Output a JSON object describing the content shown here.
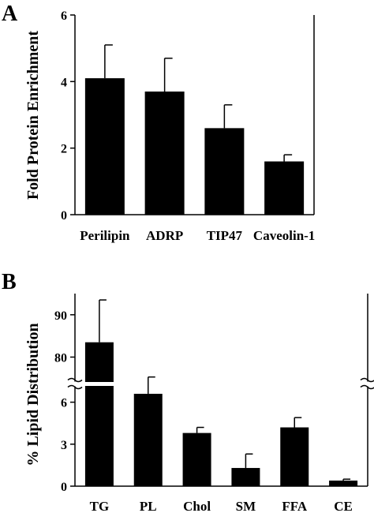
{
  "chart_data": [
    {
      "panel": "A",
      "type": "bar",
      "title": "",
      "xlabel": "",
      "ylabel": "Fold Protein Enrichment",
      "ylim": [
        0,
        6
      ],
      "yticks": [
        0,
        2,
        4,
        6
      ],
      "categories": [
        "Perilipin",
        "ADRP",
        "TIP47",
        "Caveolin-1"
      ],
      "values": [
        4.1,
        3.7,
        2.6,
        1.6
      ],
      "errors": [
        1.0,
        1.0,
        0.7,
        0.2
      ],
      "bar_color": "#000000",
      "grid": false
    },
    {
      "panel": "B",
      "type": "bar",
      "title": "",
      "xlabel": "",
      "ylabel": "% Lipid Distribution",
      "axis_break": true,
      "ylim_lower": [
        0,
        7.5
      ],
      "ylim_upper": [
        73,
        95
      ],
      "yticks_lower": [
        0,
        3,
        6
      ],
      "yticks_upper": [
        80,
        90
      ],
      "categories": [
        "TG",
        "PL",
        "Chol",
        "SM",
        "FFA",
        "CE"
      ],
      "values": [
        83.5,
        6.6,
        3.8,
        1.3,
        4.2,
        0.4
      ],
      "errors": [
        10,
        1.2,
        0.4,
        1.0,
        0.7,
        0.1
      ],
      "bar_color": "#000000",
      "grid": false
    }
  ]
}
